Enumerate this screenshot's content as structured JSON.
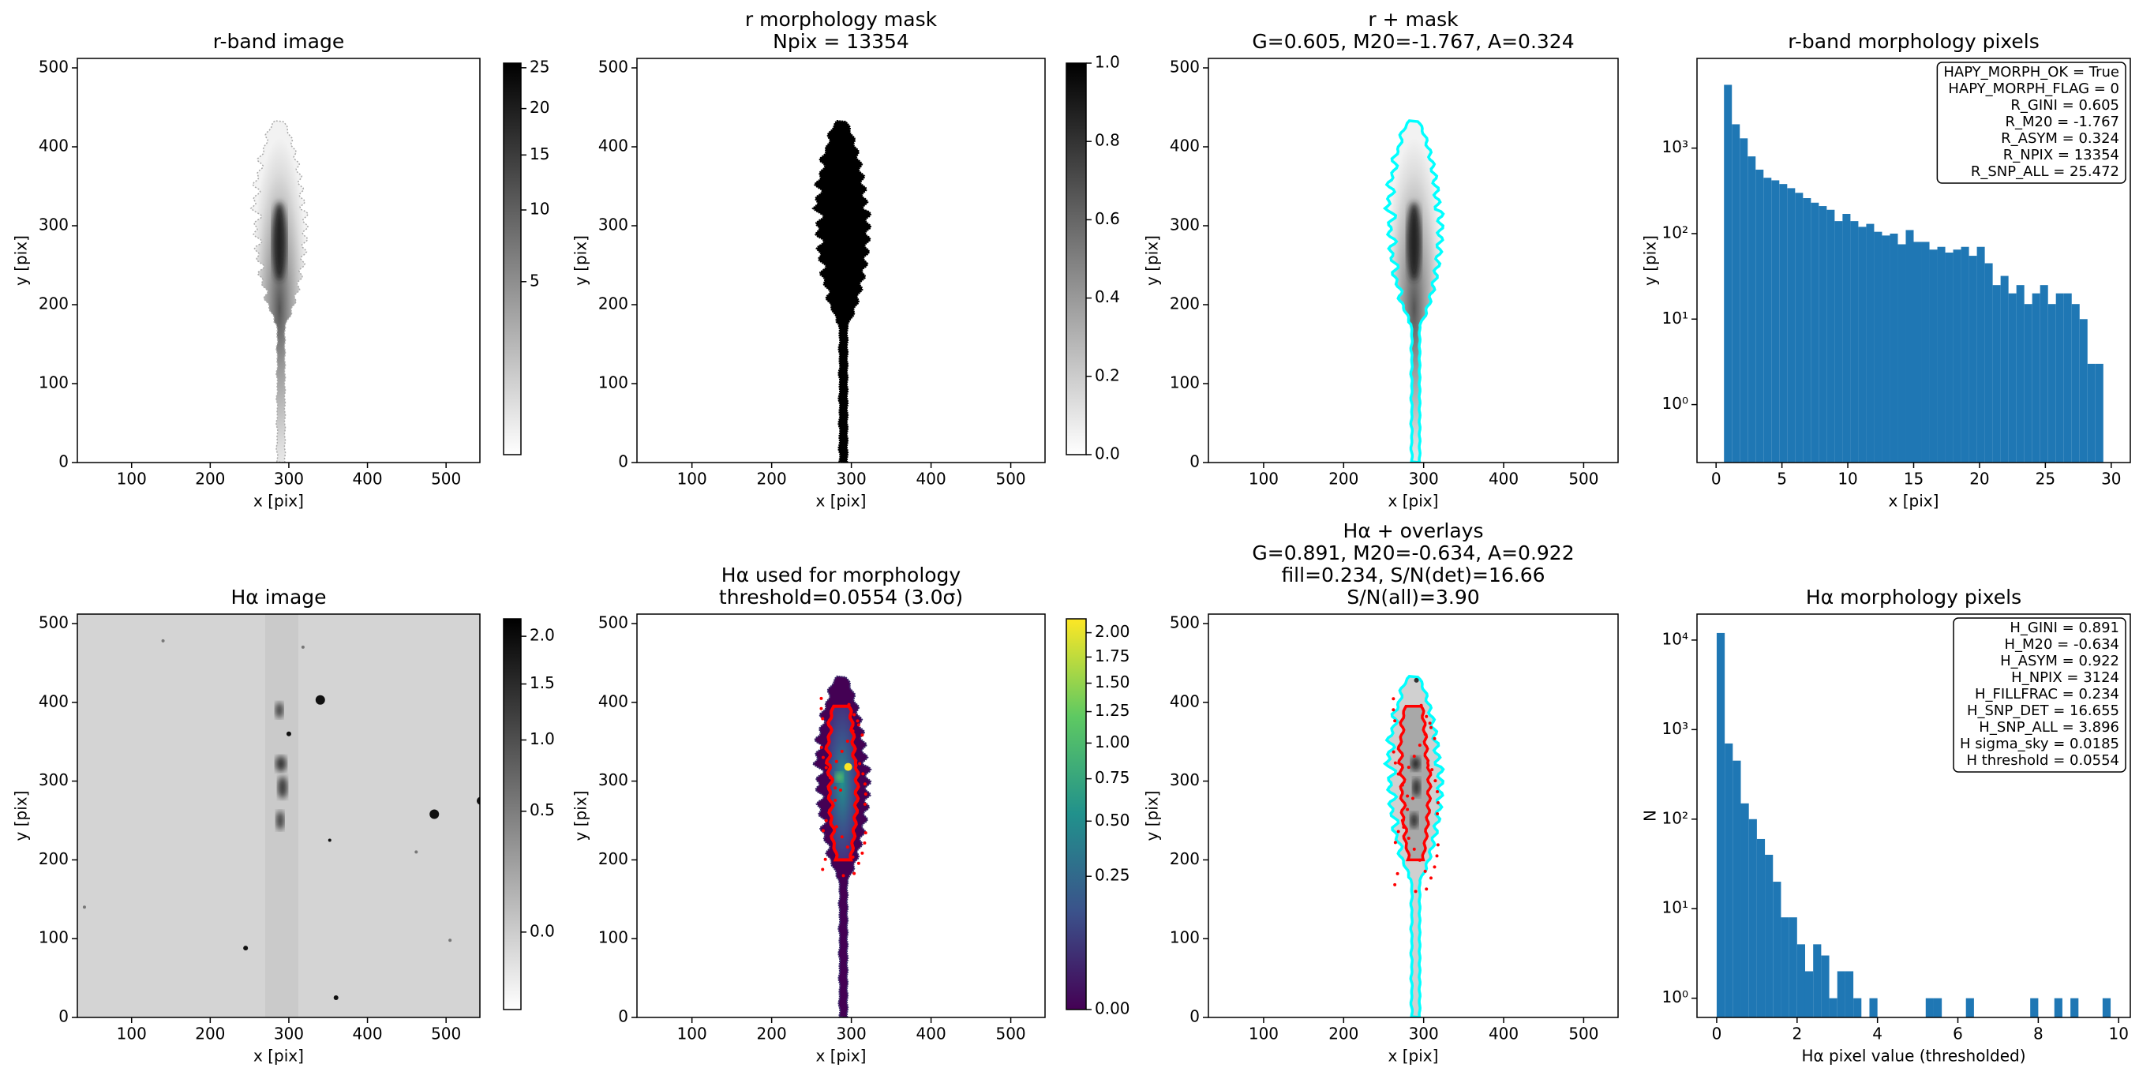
{
  "chart_data": [
    {
      "type": "image",
      "title": [
        "r-band image"
      ],
      "xlabel": "x [pix]",
      "ylabel": "y [pix]",
      "xlim": [
        31,
        543
      ],
      "ylim": [
        0,
        512
      ],
      "xticks": [
        100,
        200,
        300,
        400,
        500
      ],
      "yticks": [
        0,
        100,
        200,
        300,
        400,
        500
      ],
      "colorbar": {
        "cmap": "gray_r",
        "scale": "sqrt",
        "clim": [
          0,
          25.6
        ],
        "ticks": [
          5,
          10,
          15,
          20,
          25
        ]
      }
    },
    {
      "type": "image",
      "title": [
        "r morphology mask",
        "Npix = 13354"
      ],
      "xlabel": "x [pix]",
      "ylabel": "y [pix]",
      "xlim": [
        31,
        543
      ],
      "ylim": [
        0,
        512
      ],
      "xticks": [
        100,
        200,
        300,
        400,
        500
      ],
      "yticks": [
        0,
        100,
        200,
        300,
        400,
        500
      ],
      "colorbar": {
        "cmap": "gray_r",
        "scale": "linear",
        "clim": [
          0,
          1
        ],
        "ticks": [
          {
            "value": 0,
            "label": "0.0"
          },
          0.2,
          0.4,
          0.6,
          0.8,
          {
            "value": 1,
            "label": "1.0"
          }
        ]
      }
    },
    {
      "type": "image",
      "title": [
        "r + mask",
        "G=0.605, M20=-1.767, A=0.324"
      ],
      "xlabel": "x [pix]",
      "ylabel": "y [pix]",
      "xlim": [
        31,
        543
      ],
      "ylim": [
        0,
        512
      ],
      "xticks": [
        100,
        200,
        300,
        400,
        500
      ],
      "yticks": [
        0,
        100,
        200,
        300,
        400,
        500
      ]
    },
    {
      "type": "histogram",
      "title": [
        "r-band morphology pixels"
      ],
      "xlabel": "x [pix]",
      "ylabel": "y [pix]",
      "color": "#1f77b4",
      "log_y": true,
      "xlim": [
        -1.45,
        31.45
      ],
      "ylim": [
        0.21,
        11200
      ],
      "xticks": [
        0,
        5,
        10,
        15,
        20,
        25,
        30
      ],
      "yticks": [
        {
          "value": 1,
          "label": "10⁰"
        },
        {
          "value": 10,
          "label": "10¹"
        },
        {
          "value": 100,
          "label": "10²"
        },
        {
          "value": 1000,
          "label": "10³"
        }
      ],
      "bins": [
        0.6,
        1.2,
        1.8,
        2.4,
        3.0,
        3.6,
        4.2,
        4.8,
        5.4,
        6.0,
        6.6,
        7.2,
        7.8,
        8.4,
        9.0,
        9.6,
        10.2,
        10.8,
        11.4,
        12.0,
        12.6,
        13.2,
        13.8,
        14.4,
        15.0,
        15.6,
        16.2,
        16.8,
        17.4,
        18.0,
        18.6,
        19.2,
        19.8,
        20.4,
        21.0,
        21.6,
        22.2,
        22.8,
        23.4,
        24.0,
        24.6,
        25.2,
        25.8,
        26.4,
        27.0,
        27.6,
        28.2,
        28.8,
        29.4
      ],
      "values": [
        5500,
        1900,
        1300,
        800,
        560,
        450,
        420,
        380,
        340,
        300,
        260,
        230,
        210,
        190,
        140,
        170,
        140,
        120,
        130,
        105,
        95,
        100,
        75,
        110,
        80,
        80,
        65,
        70,
        60,
        65,
        70,
        55,
        70,
        45,
        25,
        32,
        20,
        25,
        15,
        20,
        25,
        15,
        20,
        20,
        15,
        10,
        3,
        3
      ],
      "annotation": [
        "HAPY_MORPH_OK = True",
        "HAPY_MORPH_FLAG = 0",
        "R_GINI = 0.605",
        "R_M20 = -1.767",
        "R_ASYM = 0.324",
        "R_NPIX = 13354",
        "R_SNP_ALL = 25.472"
      ]
    },
    {
      "type": "image",
      "title": [
        "Hα image"
      ],
      "xlabel": "x [pix]",
      "ylabel": "y [pix]",
      "xlim": [
        31,
        543
      ],
      "ylim": [
        0,
        512
      ],
      "xticks": [
        100,
        200,
        300,
        400,
        500
      ],
      "yticks": [
        0,
        100,
        200,
        300,
        400,
        500
      ],
      "colorbar": {
        "cmap": "gray_r",
        "scale": "sqrt",
        "clim": [
          -0.09,
          2.2
        ],
        "ticks": [
          {
            "value": 0,
            "label": "0.0"
          },
          0.5,
          {
            "value": 1,
            "label": "1.0"
          },
          1.5,
          {
            "value": 2,
            "label": "2.0"
          }
        ]
      }
    },
    {
      "type": "image",
      "title": [
        "Hα used for morphology",
        "threshold=0.0554 (3.0σ)"
      ],
      "xlabel": "x [pix]",
      "ylabel": "y [pix]",
      "xlim": [
        31,
        543
      ],
      "ylim": [
        0,
        512
      ],
      "xticks": [
        100,
        200,
        300,
        400,
        500
      ],
      "yticks": [
        0,
        100,
        200,
        300,
        400,
        500
      ],
      "colorbar": {
        "cmap": "viridis",
        "scale": "sqrt",
        "clim": [
          0,
          2.15
        ],
        "ticks": [
          {
            "value": 0,
            "label": "0.00"
          },
          0.25,
          {
            "value": 0.5,
            "label": "0.50"
          },
          0.75,
          {
            "value": 1,
            "label": "1.00"
          },
          1.25,
          {
            "value": 1.5,
            "label": "1.50"
          },
          1.75,
          {
            "value": 2,
            "label": "2.00"
          }
        ]
      }
    },
    {
      "type": "image",
      "title": [
        "Hα + overlays",
        "G=0.891, M20=-0.634, A=0.922",
        "fill=0.234, S/N(det)=16.66",
        "S/N(all)=3.90"
      ],
      "xlabel": "x [pix]",
      "ylabel": "y [pix]",
      "xlim": [
        31,
        543
      ],
      "ylim": [
        0,
        512
      ],
      "xticks": [
        100,
        200,
        300,
        400,
        500
      ],
      "yticks": [
        0,
        100,
        200,
        300,
        400,
        500
      ]
    },
    {
      "type": "histogram",
      "title": [
        "Hα morphology pixels"
      ],
      "xlabel": "Hα pixel value (thresholded)",
      "ylabel": "N",
      "color": "#1f77b4",
      "log_y": true,
      "xlim": [
        -0.49,
        10.29
      ],
      "ylim": [
        0.61,
        19500
      ],
      "xticks": [
        0,
        2,
        4,
        6,
        8,
        10
      ],
      "yticks": [
        {
          "value": 1,
          "label": "10⁰"
        },
        {
          "value": 10,
          "label": "10¹"
        },
        {
          "value": 100,
          "label": "10²"
        },
        {
          "value": 1000,
          "label": "10³"
        },
        {
          "value": 10000,
          "label": "10⁴"
        }
      ],
      "bins": [
        0,
        0.2,
        0.4,
        0.6,
        0.8,
        1.0,
        1.2,
        1.4,
        1.6,
        1.8,
        2.0,
        2.2,
        2.4,
        2.6,
        2.8,
        3.0,
        3.2,
        3.4,
        3.6,
        3.8,
        4.0,
        4.2,
        4.4,
        4.6,
        4.8,
        5.0,
        5.2,
        5.4,
        5.6,
        5.8,
        6.0,
        6.2,
        6.4,
        6.6,
        6.8,
        7.0,
        7.2,
        7.4,
        7.6,
        7.8,
        8.0,
        8.2,
        8.4,
        8.6,
        8.8,
        9.0,
        9.2,
        9.4,
        9.6,
        9.8
      ],
      "values": [
        12000,
        700,
        450,
        150,
        100,
        60,
        40,
        20,
        8,
        8,
        4,
        2,
        4,
        3,
        1,
        2,
        2,
        1,
        0,
        1,
        0,
        0,
        0,
        0,
        0,
        0,
        1,
        1,
        0,
        0,
        0,
        1,
        0,
        0,
        0,
        0,
        0,
        0,
        0,
        1,
        0,
        0,
        1,
        0,
        1,
        0,
        0,
        0,
        1
      ],
      "annotation": [
        "H_GINI = 0.891",
        "H_M20 = -0.634",
        "H_ASYM = 0.922",
        "H_NPIX = 3124",
        "H_FILLFRAC = 0.234",
        "H_SNP_DET = 16.655",
        "H_SNP_ALL = 3.896",
        "H sigma_sky = 0.0185",
        "H threshold = 0.0554"
      ]
    }
  ]
}
